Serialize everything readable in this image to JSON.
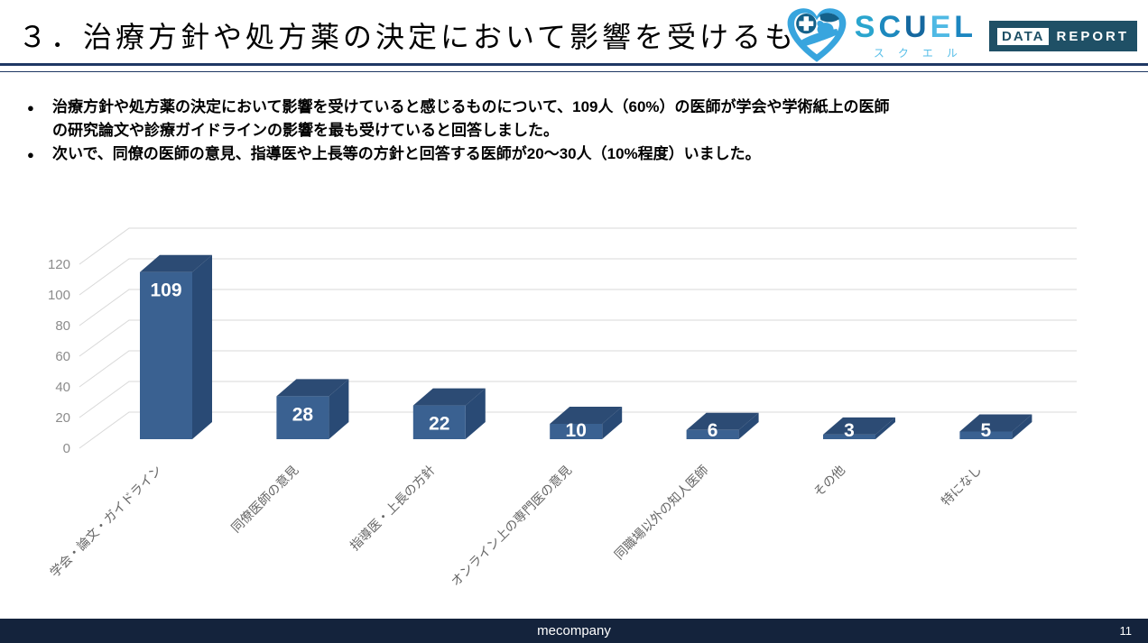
{
  "header": {
    "title": "３．治療方針や処方薬の決定において影響を受けるもの",
    "logo": {
      "brand_letters": [
        {
          "ch": "S",
          "color": "#2AA5CE"
        },
        {
          "ch": "C",
          "color": "#1D89BE"
        },
        {
          "ch": "U",
          "color": "#15689F"
        },
        {
          "ch": "E",
          "color": "#4FB9E4"
        },
        {
          "ch": "L",
          "color": "#1C86C0"
        }
      ],
      "brand_sub": "スクエル",
      "badge": {
        "data_label": "DATA",
        "report_label": "REPORT"
      }
    }
  },
  "bullets": [
    "治療方針や処方薬の決定において影響を受けていると感じるものについて、109人（60%）の医師が学会や学術紙上の医師\nの研究論文や診療ガイドラインの影響を最も受けていると回答しました。",
    "次いで、同僚の医師の意見、指導医や上長等の方針と回答する医師が20～30人（10%程度）いました。"
  ],
  "chart_data": {
    "type": "bar",
    "style": "3d-column",
    "title": "",
    "xlabel": "",
    "ylabel": "",
    "categories": [
      "学会・論文・ガイドライン",
      "同僚医師の意見",
      "指導医・上長の方針",
      "オンライン上の専門医の意見",
      "同職場以外の知人医師",
      "その他",
      "特になし"
    ],
    "values": [
      109,
      28,
      22,
      10,
      6,
      3,
      5
    ],
    "ylim": [
      0,
      120
    ],
    "ytick_step": 20,
    "grid": true,
    "legend": false,
    "colors": {
      "bar_front": "#3A6191",
      "bar_top": "#2C4B74",
      "bar_side": "#294A75",
      "gridline": "#D9D9D9",
      "tick_label": "#8C8C8C",
      "category_label": "#666666",
      "value_label": "#FFFFFF"
    }
  },
  "footer": {
    "company": "mecompany",
    "page_number": "11",
    "bar_color": "#14233C"
  }
}
